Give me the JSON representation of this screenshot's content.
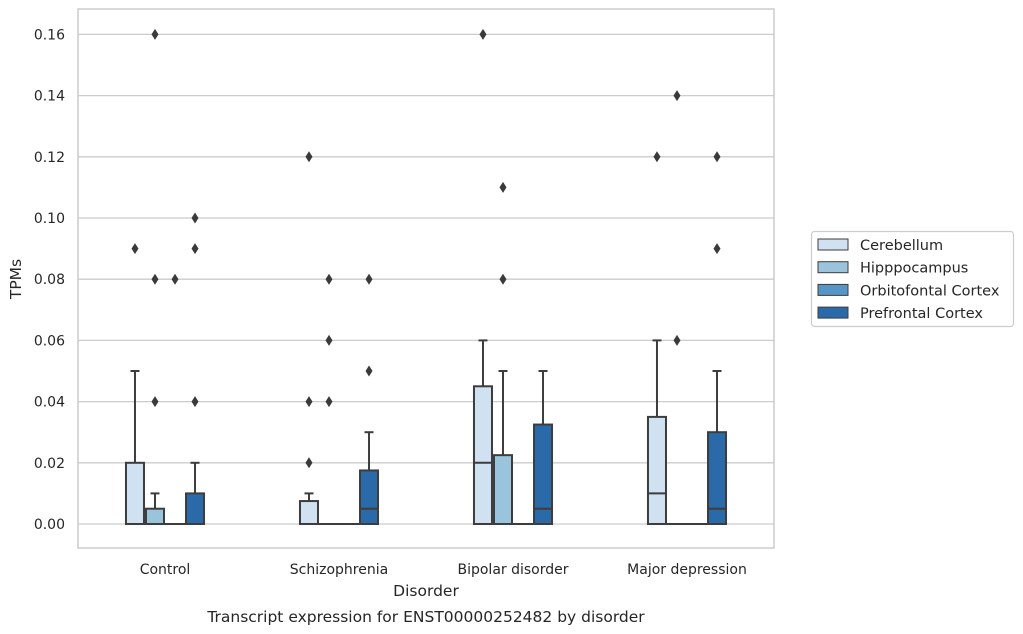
{
  "chart_data": {
    "type": "boxplot",
    "xlabel": "Disorder",
    "ylabel": "TPMs",
    "caption": "Transcript expression for ENST00000252482 by disorder",
    "categories": [
      "Control",
      "Schizophrenia",
      "Bipolar disorder",
      "Major depression"
    ],
    "ylim": [
      -0.008,
      0.168
    ],
    "yticks": [
      0.0,
      0.02,
      0.04,
      0.06,
      0.08,
      0.1,
      0.12,
      0.14,
      0.16
    ],
    "ytick_labels": [
      "0.00",
      "0.02",
      "0.04",
      "0.06",
      "0.08",
      "0.10",
      "0.12",
      "0.14",
      "0.16"
    ],
    "grid": true,
    "legend_position": "right",
    "series": [
      {
        "name": "Cerebellum",
        "color": "#d0e1f2",
        "boxes": [
          {
            "q1": 0.0,
            "median": 0.0,
            "q3": 0.02,
            "whislo": 0.0,
            "whishi": 0.05,
            "fliers": [
              0.09
            ]
          },
          {
            "q1": 0.0,
            "median": 0.0,
            "q3": 0.0075,
            "whislo": 0.0,
            "whishi": 0.01,
            "fliers": [
              0.02,
              0.04,
              0.12
            ]
          },
          {
            "q1": 0.0,
            "median": 0.02,
            "q3": 0.045,
            "whislo": 0.0,
            "whishi": 0.06,
            "fliers": [
              0.16
            ]
          },
          {
            "q1": 0.0,
            "median": 0.01,
            "q3": 0.035,
            "whislo": 0.0,
            "whishi": 0.06,
            "fliers": [
              0.12
            ]
          }
        ]
      },
      {
        "name": "Hipppocampus",
        "color": "#9ac3dc",
        "boxes": [
          {
            "q1": 0.0,
            "median": 0.0,
            "q3": 0.005,
            "whislo": 0.0,
            "whishi": 0.01,
            "fliers": [
              0.04,
              0.08,
              0.16
            ]
          },
          {
            "q1": 0.0,
            "median": 0.0,
            "q3": 0.0,
            "whislo": 0.0,
            "whishi": 0.0,
            "fliers": [
              0.04,
              0.06,
              0.08
            ]
          },
          {
            "q1": 0.0,
            "median": 0.0,
            "q3": 0.0225,
            "whislo": 0.0,
            "whishi": 0.05,
            "fliers": [
              0.08,
              0.11
            ]
          },
          {
            "q1": 0.0,
            "median": 0.0,
            "q3": 0.0,
            "whislo": 0.0,
            "whishi": 0.0,
            "fliers": [
              0.06,
              0.14
            ]
          }
        ]
      },
      {
        "name": "Orbitofontal Cortex",
        "color": "#5595c7",
        "boxes": [
          {
            "q1": 0.0,
            "median": 0.0,
            "q3": 0.0,
            "whislo": 0.0,
            "whishi": 0.0,
            "fliers": [
              0.08
            ]
          },
          {
            "q1": 0.0,
            "median": 0.0,
            "q3": 0.0,
            "whislo": 0.0,
            "whishi": 0.0,
            "fliers": []
          },
          {
            "q1": 0.0,
            "median": 0.0,
            "q3": 0.0,
            "whislo": 0.0,
            "whishi": 0.0,
            "fliers": []
          },
          {
            "q1": 0.0,
            "median": 0.0,
            "q3": 0.0,
            "whislo": 0.0,
            "whishi": 0.0,
            "fliers": []
          }
        ]
      },
      {
        "name": "Prefrontal Cortex",
        "color": "#2b6aa8",
        "boxes": [
          {
            "q1": 0.0,
            "median": 0.0,
            "q3": 0.01,
            "whislo": 0.0,
            "whishi": 0.02,
            "fliers": [
              0.04,
              0.09,
              0.1
            ]
          },
          {
            "q1": 0.0,
            "median": 0.005,
            "q3": 0.0175,
            "whislo": 0.0,
            "whishi": 0.03,
            "fliers": [
              0.05,
              0.08
            ]
          },
          {
            "q1": 0.0,
            "median": 0.005,
            "q3": 0.0325,
            "whislo": 0.0,
            "whishi": 0.05,
            "fliers": []
          },
          {
            "q1": 0.0,
            "median": 0.005,
            "q3": 0.03,
            "whislo": 0.0,
            "whishi": 0.05,
            "fliers": [
              0.09,
              0.12
            ]
          }
        ]
      }
    ]
  },
  "colors": {
    "grid": "#cccccc",
    "frame": "#cccccc",
    "box_edge": "#3d3d3d",
    "text": "#262626"
  }
}
